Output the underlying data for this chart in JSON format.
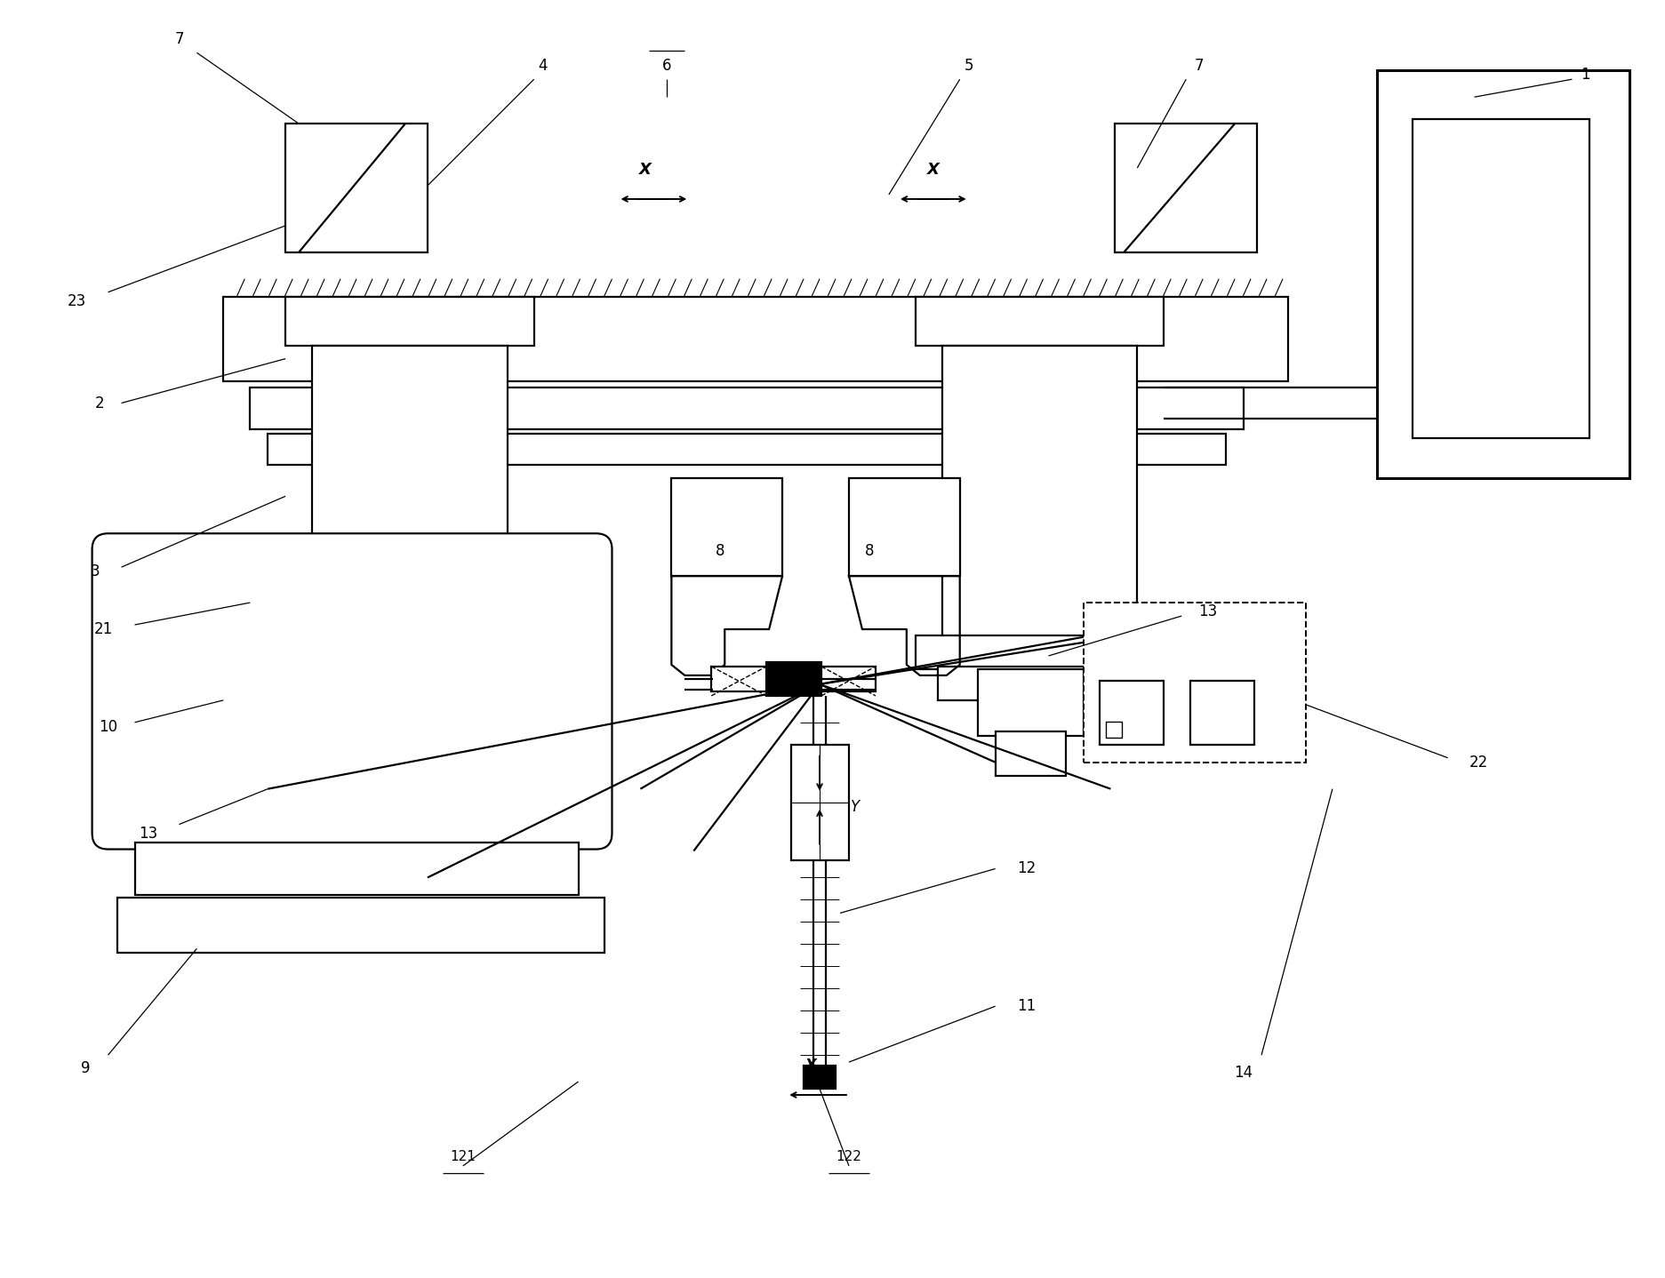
{
  "bg": "#ffffff",
  "lc": "#000000",
  "lw": 1.6,
  "fw": 18.73,
  "fh": 14.38,
  "xlim": [
    0,
    18.73
  ],
  "ylim": [
    0,
    14.38
  ]
}
